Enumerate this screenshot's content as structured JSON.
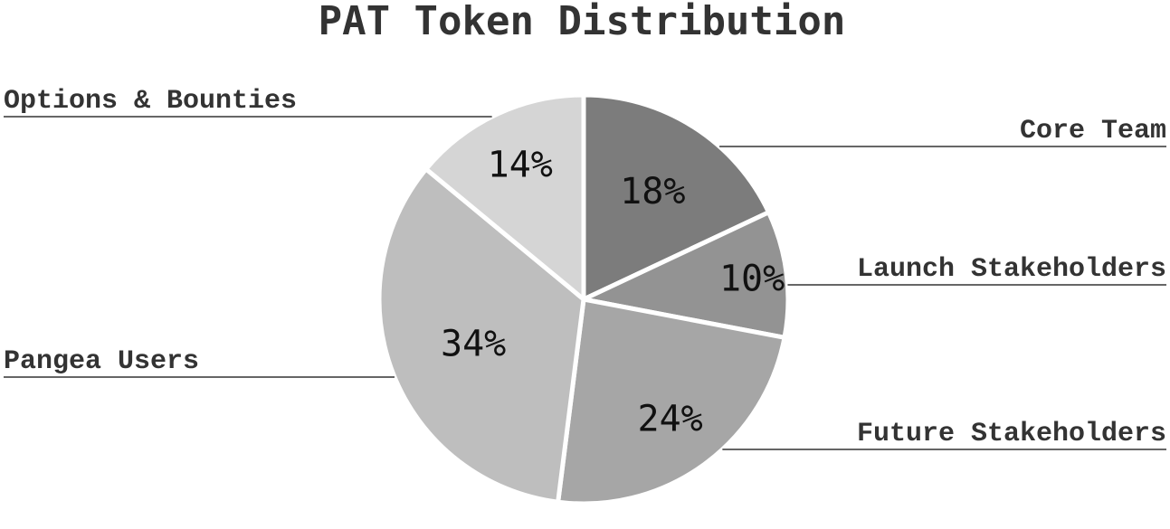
{
  "chart_data": {
    "type": "pie",
    "title": "PAT Token Distribution",
    "slices": [
      {
        "label": "Core Team",
        "value": 18,
        "value_label": "18%",
        "color": "#7c7c7c"
      },
      {
        "label": "Launch Stakeholders",
        "value": 10,
        "value_label": "10%",
        "color": "#939393"
      },
      {
        "label": "Future Stakeholders",
        "value": 24,
        "value_label": "24%",
        "color": "#a6a6a6"
      },
      {
        "label": "Pangea Users",
        "value": 34,
        "value_label": "34%",
        "color": "#bebebe"
      },
      {
        "label": "Options & Bounties",
        "value": 14,
        "value_label": "14%",
        "color": "#d5d5d5"
      }
    ],
    "start_angle": "12 o'clock",
    "direction": "clockwise",
    "legend": "none"
  }
}
